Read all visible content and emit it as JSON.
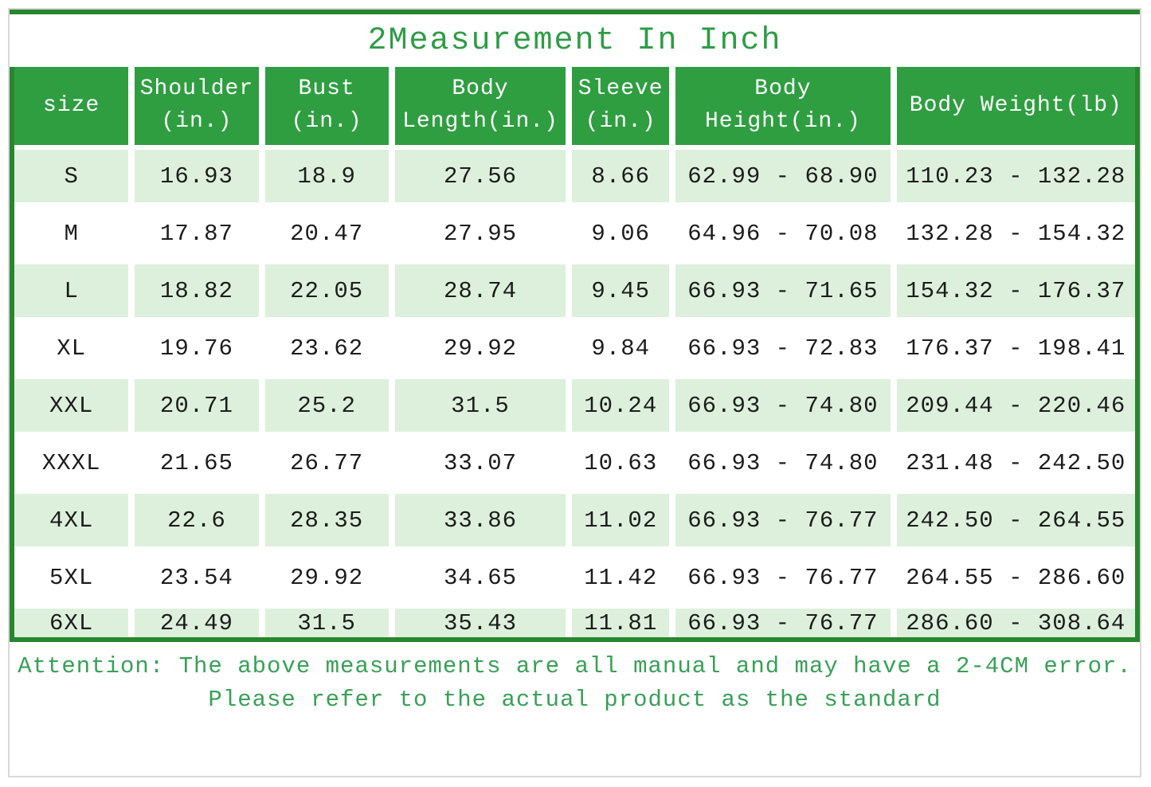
{
  "page": {
    "title": "2Measurement In Inch",
    "attention_line1": "Attention: The above measurements are all manual and may have a 2-4CM error.",
    "attention_line2": "Please refer to the actual product as the standard"
  },
  "colors": {
    "header_green": "#2f9e41",
    "border_green": "#28862f",
    "band_green": "#ddf0dc",
    "title_green": "#2e9c46",
    "attention_green": "#38a057"
  },
  "chart_data": {
    "type": "table",
    "title": "2Measurement In Inch",
    "columns": [
      "size",
      "Shoulder\n(in.)",
      "Bust\n(in.)",
      "Body\nLength(in.)",
      "Sleeve\n(in.)",
      "Body\nHeight(in.)",
      "Body Weight(lb)"
    ],
    "rows": [
      [
        "S",
        "16.93",
        "18.9",
        "27.56",
        "8.66",
        "62.99 - 68.90",
        "110.23 - 132.28"
      ],
      [
        "M",
        "17.87",
        "20.47",
        "27.95",
        "9.06",
        "64.96 - 70.08",
        "132.28 - 154.32"
      ],
      [
        "L",
        "18.82",
        "22.05",
        "28.74",
        "9.45",
        "66.93 - 71.65",
        "154.32 - 176.37"
      ],
      [
        "XL",
        "19.76",
        "23.62",
        "29.92",
        "9.84",
        "66.93 - 72.83",
        "176.37 - 198.41"
      ],
      [
        "XXL",
        "20.71",
        "25.2",
        "31.5",
        "10.24",
        "66.93 - 74.80",
        "209.44 - 220.46"
      ],
      [
        "XXXL",
        "21.65",
        "26.77",
        "33.07",
        "10.63",
        "66.93 - 74.80",
        "231.48 - 242.50"
      ],
      [
        "4XL",
        "22.6",
        "28.35",
        "33.86",
        "11.02",
        "66.93 - 76.77",
        "242.50 - 264.55"
      ],
      [
        "5XL",
        "23.54",
        "29.92",
        "34.65",
        "11.42",
        "66.93 - 76.77",
        "264.55 - 286.60"
      ],
      [
        "6XL",
        "24.49",
        "31.5",
        "35.43",
        "11.81",
        "66.93 - 76.77",
        "286.60 - 308.64"
      ]
    ]
  }
}
